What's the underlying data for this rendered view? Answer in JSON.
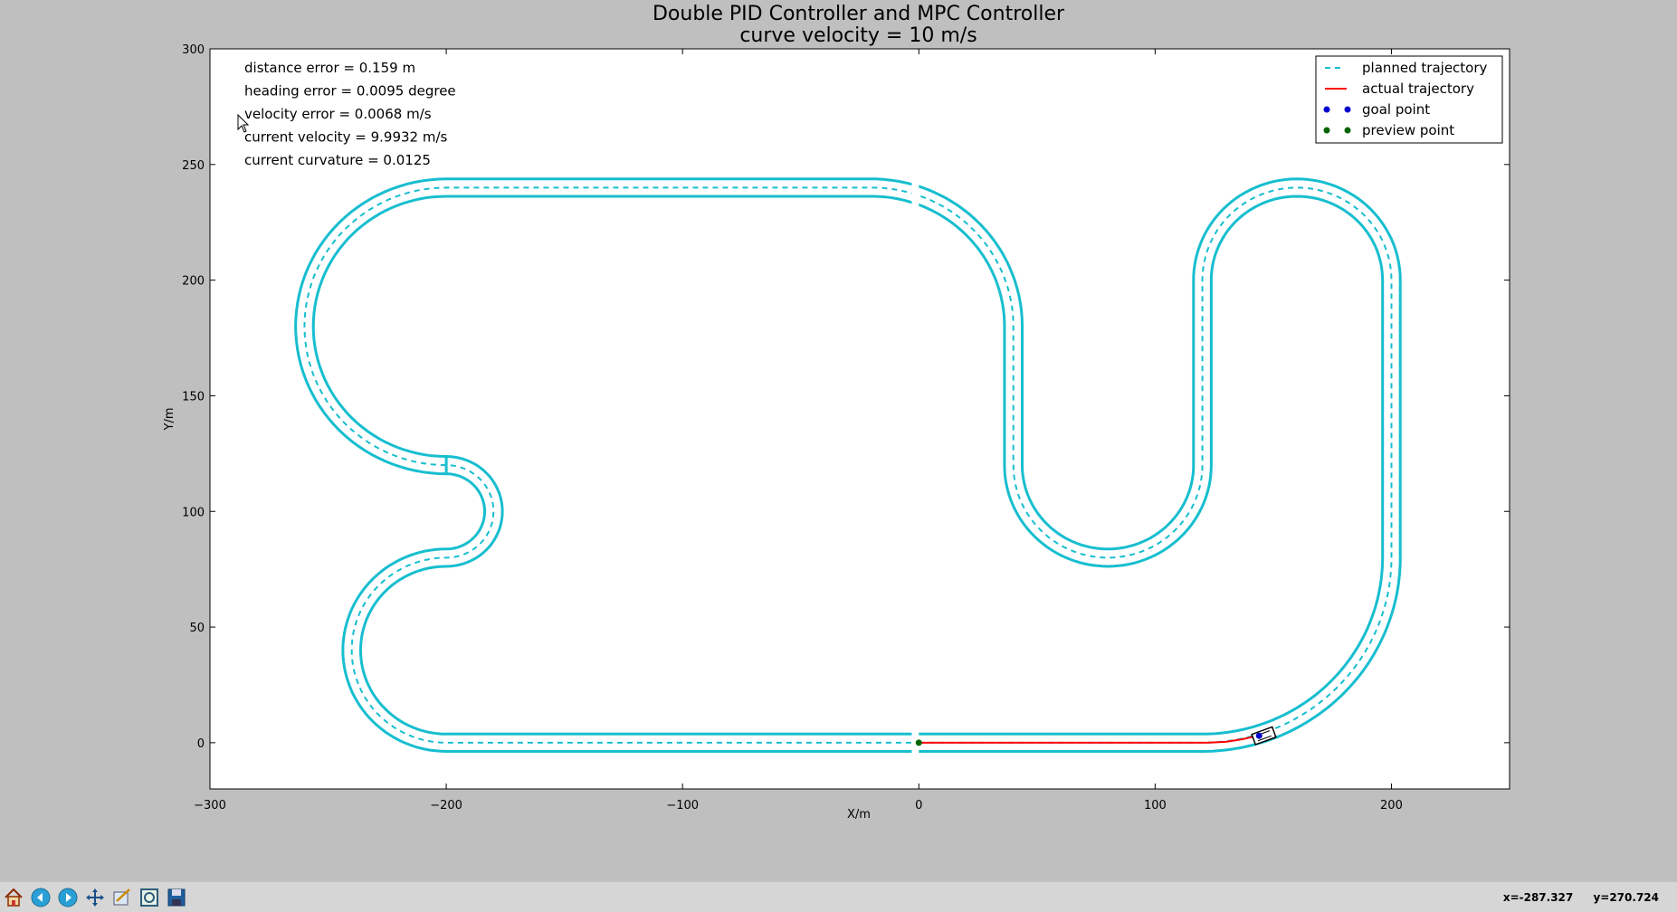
{
  "window": {
    "title_line1": "Double PID Controller and MPC Controller",
    "title_line2": "curve velocity = 10 m/s"
  },
  "chart_data": {
    "type": "line",
    "title": "Double PID Controller and MPC Controller",
    "subtitle": "curve velocity = 10 m/s",
    "xlabel": "X/m",
    "ylabel": "Y/m",
    "xlim": [
      -300,
      250
    ],
    "ylim": [
      -20,
      300
    ],
    "xticks": [
      -300,
      -200,
      -100,
      0,
      100,
      200
    ],
    "yticks": [
      0,
      50,
      100,
      150,
      200,
      250,
      300
    ],
    "grid": false,
    "legend_position": "top-right",
    "legend": [
      {
        "label": "planned trajectory",
        "style": "dashed",
        "color": "#17becf"
      },
      {
        "label": "actual trajectory",
        "style": "solid",
        "color": "#ff0000"
      },
      {
        "label": "goal point",
        "style": "dots",
        "color": "#0000cc"
      },
      {
        "label": "preview point",
        "style": "dots",
        "color": "#006400"
      }
    ],
    "annotations": [
      "distance error = 0.159 m",
      "heading error = 0.0095 degree",
      "velocity error = 0.0068 m/s",
      "current velocity = 9.9932 m/s",
      "current curvature = 0.0125"
    ],
    "track_half_width": 3.75,
    "planned_trajectory": [
      {
        "kind": "line",
        "from": [
          0,
          0
        ],
        "to": [
          120,
          0
        ]
      },
      {
        "kind": "arc",
        "center": [
          120,
          80
        ],
        "r": 80,
        "start": -90,
        "end": 0
      },
      {
        "kind": "line",
        "from": [
          200,
          80
        ],
        "to": [
          200,
          200
        ]
      },
      {
        "kind": "arc",
        "center": [
          160,
          200
        ],
        "r": 40,
        "start": 0,
        "end": 180
      },
      {
        "kind": "line",
        "from": [
          120,
          200
        ],
        "to": [
          120,
          120
        ]
      },
      {
        "kind": "arc",
        "center": [
          80,
          120
        ],
        "r": 40,
        "start": 0,
        "end": -180
      },
      {
        "kind": "line",
        "from": [
          40,
          120
        ],
        "to": [
          40,
          180
        ]
      },
      {
        "kind": "arc",
        "center": [
          -20,
          180
        ],
        "r": 60,
        "start": 0,
        "end": 90
      },
      {
        "kind": "line",
        "from": [
          -20,
          240
        ],
        "to": [
          -200,
          240
        ]
      },
      {
        "kind": "arc",
        "center": [
          -200,
          180
        ],
        "r": 60,
        "start": 90,
        "end": 270
      },
      {
        "kind": "line",
        "from": [
          -200,
          120
        ],
        "to": [
          -200,
          120
        ]
      },
      {
        "kind": "arc",
        "center": [
          -200,
          100
        ],
        "r": 20,
        "start": 90,
        "end": -90
      },
      {
        "kind": "arc",
        "center": [
          -200,
          40
        ],
        "r": 40,
        "start": 90,
        "end": 270
      },
      {
        "kind": "line",
        "from": [
          -200,
          0
        ],
        "to": [
          0,
          0
        ]
      }
    ],
    "actual_trajectory": {
      "x": [
        0,
        60,
        110,
        122,
        130,
        137,
        142,
        146
      ],
      "y": [
        0,
        0,
        0,
        0,
        0.4,
        1.5,
        2.7,
        3.4
      ]
    },
    "preview_point": {
      "x": 0,
      "y": 0
    },
    "goal_point": {
      "x": 144,
      "y": 3
    },
    "vehicle": {
      "x": 146,
      "y": 3,
      "heading_deg": 20
    }
  },
  "toolbar": {
    "buttons": [
      "home-icon",
      "back-icon",
      "forward-icon",
      "pan-icon",
      "configure-icon",
      "zoom-icon",
      "save-icon"
    ],
    "coord_x": "x=-287.327",
    "coord_y": "y=270.724"
  }
}
